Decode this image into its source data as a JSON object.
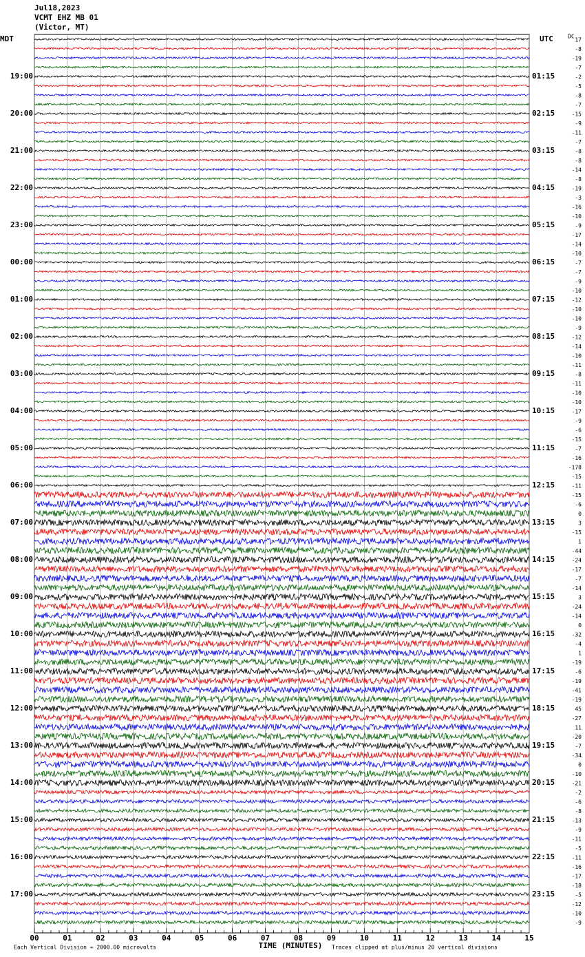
{
  "header": {
    "date": "Jul18,2023",
    "station": "VCMT EHZ MB 01",
    "location": "(Victor, MT)"
  },
  "left_zone": "MDT",
  "right_zone": "UTC",
  "dc_label": "DC",
  "hour_labels_left": [
    "19:00",
    "20:00",
    "21:00",
    "22:00",
    "23:00",
    "00:00",
    "01:00",
    "02:00",
    "03:00",
    "04:00",
    "05:00",
    "06:00",
    "07:00",
    "08:00",
    "09:00",
    "10:00",
    "11:00",
    "12:00",
    "13:00",
    "14:00",
    "15:00",
    "16:00",
    "17:00"
  ],
  "hour_labels_right": [
    "01:15",
    "02:15",
    "03:15",
    "04:15",
    "05:15",
    "06:15",
    "07:15",
    "08:15",
    "09:15",
    "10:15",
    "11:15",
    "12:15",
    "13:15",
    "14:15",
    "15:15",
    "16:15",
    "17:15",
    "18:15",
    "19:15",
    "20:15",
    "21:15",
    "22:15",
    "23:15"
  ],
  "dc_offsets": [
    17,
    -8,
    -19,
    -7,
    -2,
    -5,
    -8,
    -7,
    -15,
    -9,
    -11,
    -7,
    -8,
    -8,
    -14,
    -8,
    -19,
    -3,
    -16,
    -10,
    -9,
    -17,
    -14,
    -10,
    -7,
    -7,
    -9,
    -10,
    -12,
    -10,
    -10,
    -9,
    -12,
    -14,
    -10,
    -11,
    -8,
    -11,
    -10,
    -10,
    -17,
    -9,
    -6,
    -15,
    -7,
    -16,
    -178,
    -15,
    -11,
    -15,
    -6,
    0,
    3,
    -15,
    1,
    -44,
    -24,
    -17,
    -7,
    -14,
    3,
    -24,
    -14,
    0,
    -32,
    -4,
    1,
    -19,
    -6,
    -19,
    -41,
    -19,
    45,
    -27,
    11,
    -20,
    -7,
    -34,
    0,
    -10,
    -21,
    -2,
    -6,
    -8,
    -13,
    -9,
    -11,
    -5,
    -11,
    -16,
    -17,
    -18,
    -5,
    -12,
    -10,
    -9
  ],
  "x_ticks": [
    "00",
    "01",
    "02",
    "03",
    "04",
    "05",
    "06",
    "07",
    "08",
    "09",
    "10",
    "11",
    "12",
    "13",
    "14",
    "15"
  ],
  "x_label": "TIME (MINUTES)",
  "footer_left": "Each Vertical Division = 2000.00 microvolts",
  "footer_right": "Traces clipped at plus/minus 20 vertical divisions"
}
